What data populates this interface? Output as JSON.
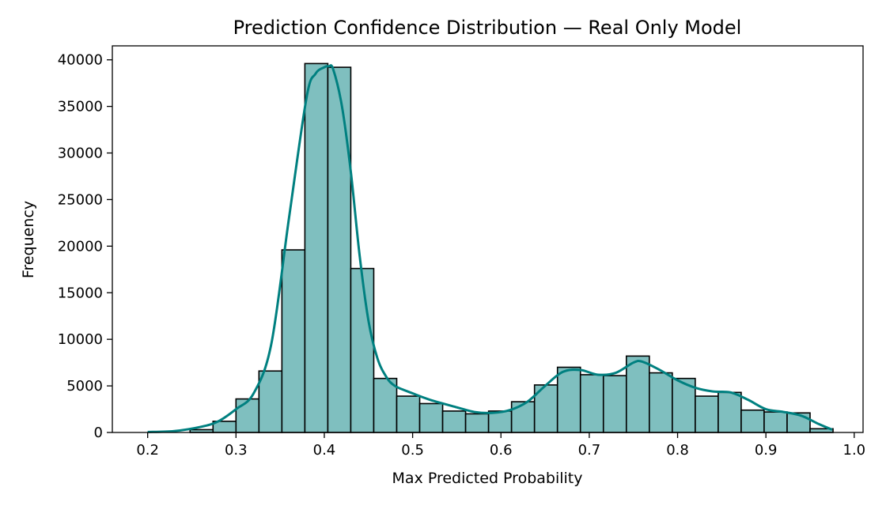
{
  "chart_data": {
    "type": "histogram",
    "title": "Prediction Confidence Distribution — Real Only Model",
    "xlabel": "Max Predicted Probability",
    "ylabel": "Frequency",
    "xlim": [
      0.16,
      1.01
    ],
    "ylim": [
      0,
      41500
    ],
    "xticks": [
      0.2,
      0.3,
      0.4,
      0.5,
      0.6,
      0.7,
      0.8,
      0.9,
      1.0
    ],
    "xtick_labels": [
      "0.2",
      "0.3",
      "0.4",
      "0.5",
      "0.6",
      "0.7",
      "0.8",
      "0.9",
      "1.0"
    ],
    "yticks": [
      0,
      5000,
      10000,
      15000,
      20000,
      25000,
      30000,
      35000,
      40000
    ],
    "ytick_labels": [
      "0",
      "5000",
      "10000",
      "15000",
      "20000",
      "25000",
      "30000",
      "35000",
      "40000"
    ],
    "grid": false,
    "colors": {
      "bar_fill": "#7fbfbf",
      "bar_edge": "#000000",
      "kde_line": "#008080"
    },
    "bins": [
      {
        "x0": 0.248,
        "x1": 0.274,
        "count": 300
      },
      {
        "x0": 0.274,
        "x1": 0.3,
        "count": 1200
      },
      {
        "x0": 0.3,
        "x1": 0.326,
        "count": 3600
      },
      {
        "x0": 0.326,
        "x1": 0.352,
        "count": 6600
      },
      {
        "x0": 0.352,
        "x1": 0.378,
        "count": 19600
      },
      {
        "x0": 0.378,
        "x1": 0.404,
        "count": 39600
      },
      {
        "x0": 0.404,
        "x1": 0.43,
        "count": 39200
      },
      {
        "x0": 0.43,
        "x1": 0.456,
        "count": 17600
      },
      {
        "x0": 0.456,
        "x1": 0.482,
        "count": 5800
      },
      {
        "x0": 0.482,
        "x1": 0.508,
        "count": 3900
      },
      {
        "x0": 0.508,
        "x1": 0.534,
        "count": 3100
      },
      {
        "x0": 0.534,
        "x1": 0.56,
        "count": 2300
      },
      {
        "x0": 0.56,
        "x1": 0.586,
        "count": 2000
      },
      {
        "x0": 0.586,
        "x1": 0.612,
        "count": 2300
      },
      {
        "x0": 0.612,
        "x1": 0.638,
        "count": 3300
      },
      {
        "x0": 0.638,
        "x1": 0.664,
        "count": 5100
      },
      {
        "x0": 0.664,
        "x1": 0.69,
        "count": 7000
      },
      {
        "x0": 0.69,
        "x1": 0.716,
        "count": 6200
      },
      {
        "x0": 0.716,
        "x1": 0.742,
        "count": 6100
      },
      {
        "x0": 0.742,
        "x1": 0.768,
        "count": 8200
      },
      {
        "x0": 0.768,
        "x1": 0.794,
        "count": 6400
      },
      {
        "x0": 0.794,
        "x1": 0.82,
        "count": 5800
      },
      {
        "x0": 0.82,
        "x1": 0.846,
        "count": 3900
      },
      {
        "x0": 0.846,
        "x1": 0.872,
        "count": 4300
      },
      {
        "x0": 0.872,
        "x1": 0.898,
        "count": 2400
      },
      {
        "x0": 0.898,
        "x1": 0.924,
        "count": 2200
      },
      {
        "x0": 0.924,
        "x1": 0.95,
        "count": 2100
      },
      {
        "x0": 0.95,
        "x1": 0.976,
        "count": 400
      }
    ],
    "kde": {
      "x": [
        0.2,
        0.23,
        0.26,
        0.28,
        0.3,
        0.32,
        0.34,
        0.36,
        0.38,
        0.39,
        0.4,
        0.405,
        0.41,
        0.42,
        0.43,
        0.44,
        0.45,
        0.46,
        0.47,
        0.48,
        0.5,
        0.52,
        0.55,
        0.57,
        0.59,
        0.61,
        0.63,
        0.65,
        0.67,
        0.69,
        0.71,
        0.73,
        0.75,
        0.76,
        0.78,
        0.8,
        0.82,
        0.84,
        0.86,
        0.88,
        0.9,
        0.92,
        0.94,
        0.96,
        0.975
      ],
      "y": [
        50,
        150,
        600,
        1200,
        2500,
        4200,
        9500,
        23000,
        36000,
        38500,
        39200,
        39300,
        39000,
        35000,
        28000,
        19000,
        12000,
        8000,
        6000,
        5000,
        4200,
        3500,
        2700,
        2200,
        2100,
        2400,
        3300,
        5000,
        6500,
        6700,
        6200,
        6400,
        7500,
        7600,
        6700,
        5600,
        4800,
        4400,
        4300,
        3500,
        2500,
        2200,
        1800,
        900,
        300
      ]
    }
  }
}
